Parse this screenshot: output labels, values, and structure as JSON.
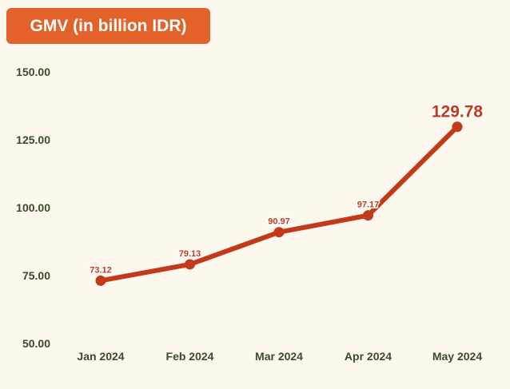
{
  "header": {
    "title": "GMV (in billion IDR)"
  },
  "colors": {
    "background": "#fdf8ee",
    "title_bg": "#e2622a",
    "line": "#c23a1a",
    "axis_text": "#3b4a2a"
  },
  "chart_data": {
    "type": "line",
    "title": "GMV (in billion IDR)",
    "categories": [
      "Jan 2024",
      "Feb 2024",
      "Mar 2024",
      "Apr 2024",
      "May 2024"
    ],
    "series": [
      {
        "values": [
          73.12,
          79.13,
          90.97,
          97.17,
          129.78
        ]
      }
    ],
    "data_labels": [
      "73.12",
      "79.13",
      "90.97",
      "97.17",
      "129.78"
    ],
    "yticks": [
      "50.00",
      "75.00",
      "100.00",
      "125.00",
      "150.00"
    ],
    "ylim": [
      50,
      150
    ],
    "grid": false,
    "xlabel": "",
    "ylabel": ""
  }
}
